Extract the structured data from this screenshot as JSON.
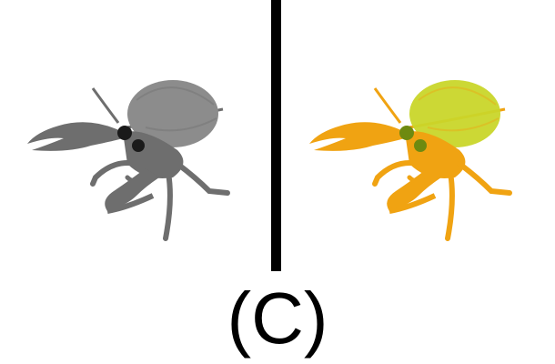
{
  "panels": [
    {
      "id": "left",
      "style": "grayscale",
      "body_color": "#6e6e6e",
      "shell_color": "#8c8c8c",
      "eye_color": "#1a1a1a"
    },
    {
      "id": "right",
      "style": "colored",
      "body_color": "#f0a312",
      "shell_color": "#c9d62a",
      "eye_color": "#6e8a10"
    }
  ],
  "divider_color": "#000000",
  "caption": "(C)"
}
